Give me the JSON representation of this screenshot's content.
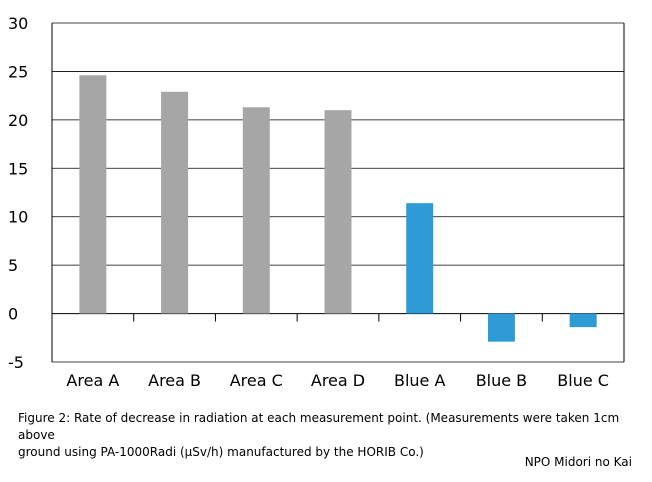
{
  "chart_data": {
    "type": "bar",
    "categories": [
      "Area A",
      "Area B",
      "Area C",
      "Area D",
      "Blue A",
      "Blue B",
      "Blue C"
    ],
    "values": [
      24.6,
      22.9,
      21.3,
      21.0,
      11.4,
      -2.9,
      -1.4
    ],
    "bar_colors": [
      "#a6a6a6",
      "#a6a6a6",
      "#a6a6a6",
      "#a6a6a6",
      "#2e9bd6",
      "#2e9bd6",
      "#2e9bd6"
    ],
    "ylim": [
      -5,
      30
    ],
    "yticks": [
      "30",
      "25",
      "20",
      "15",
      "10",
      "5",
      "0",
      "-5"
    ],
    "grid": true,
    "title": "",
    "xlabel": "",
    "ylabel": ""
  },
  "caption": {
    "line1": "Figure 2: Rate of decrease in radiation at each measurement point. (Measurements were taken 1cm above",
    "line2": "ground using PA-1000Radi (μSv/h) manufactured by the HORIB Co.)"
  },
  "credit": "NPO Midori no Kai"
}
